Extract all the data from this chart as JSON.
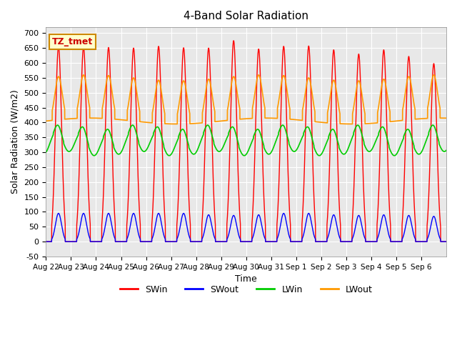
{
  "title": "4-Band Solar Radiation",
  "xlabel": "Time",
  "ylabel": "Solar Radiation (W/m2)",
  "ylim": [
    -50,
    720
  ],
  "bg_color": "#e8e8e8",
  "annotation_label": "TZ_tmet",
  "annotation_bg": "#ffffcc",
  "annotation_border": "#cc8800",
  "annotation_text_color": "#cc0000",
  "colors": {
    "SWin": "#ff0000",
    "SWout": "#0000ff",
    "LWin": "#00cc00",
    "LWout": "#ff9900"
  },
  "num_days": 16,
  "x_labels": [
    "Aug 22",
    "Aug 23",
    "Aug 24",
    "Aug 25",
    "Aug 26",
    "Aug 27",
    "Aug 28",
    "Aug 29",
    "Aug 30",
    "Aug 31",
    "Sep 1",
    "Sep 2",
    "Sep 3",
    "Sep 4",
    "Sep 5",
    "Sep 6"
  ],
  "SWin_peaks": [
    655,
    653,
    652,
    650,
    656,
    651,
    650,
    675,
    647,
    656,
    657,
    644,
    630,
    644,
    622,
    598
  ],
  "SWout_peaks": [
    95,
    95,
    95,
    95,
    95,
    95,
    90,
    88,
    90,
    95,
    95,
    90,
    88,
    90,
    88,
    85
  ],
  "LWin_base": 330,
  "LWin_amplitude": 35,
  "LWout_base": 405,
  "LWout_amplitude": 145
}
